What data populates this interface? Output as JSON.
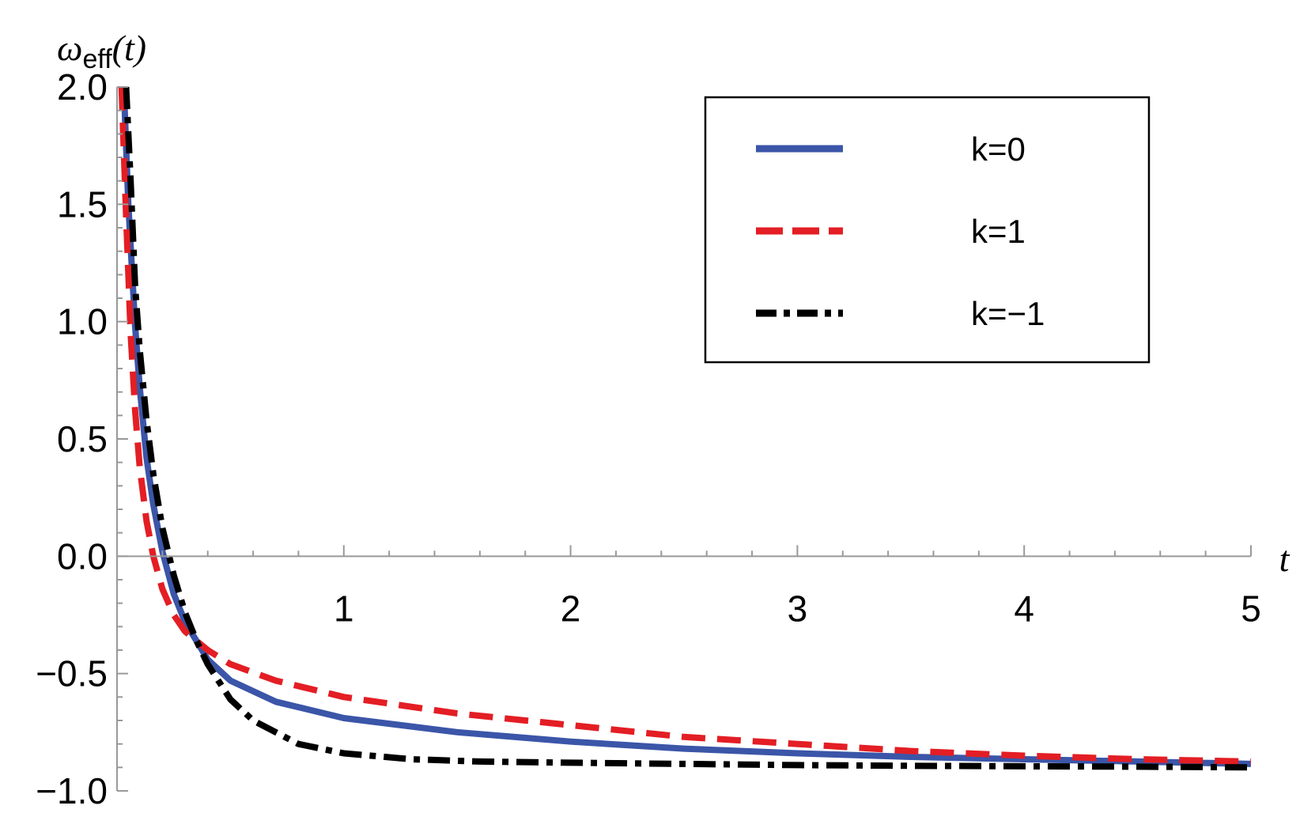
{
  "chart_data": {
    "type": "line",
    "title": "",
    "xlabel": "t",
    "ylabel": {
      "main": "ω",
      "sub": "eff",
      "arg": "(t)"
    },
    "xlim": [
      0,
      5
    ],
    "ylim": [
      -1.0,
      2.0
    ],
    "x_ticks": [
      1,
      2,
      3,
      4,
      5
    ],
    "x_tick_labels": [
      "1",
      "2",
      "3",
      "4",
      "5"
    ],
    "y_ticks": [
      -1.0,
      -0.5,
      0.0,
      0.5,
      1.0,
      1.5,
      2.0
    ],
    "y_tick_labels": [
      "−1.0",
      "−0.5",
      "0.0",
      "0.5",
      "1.0",
      "1.5",
      "2.0"
    ],
    "grid": false,
    "legend": {
      "placement": "top-right"
    },
    "series": [
      {
        "name": "k=0",
        "color": "#3b55a8",
        "style": "solid",
        "x": [
          0.03,
          0.05,
          0.08,
          0.1,
          0.13,
          0.16,
          0.2,
          0.25,
          0.3,
          0.4,
          0.5,
          0.7,
          1.0,
          1.5,
          2.0,
          2.5,
          3.0,
          3.5,
          4.0,
          4.5,
          5.0
        ],
        "y": [
          2.0,
          1.5,
          0.98,
          0.72,
          0.42,
          0.22,
          0.02,
          -0.16,
          -0.28,
          -0.44,
          -0.53,
          -0.62,
          -0.69,
          -0.75,
          -0.79,
          -0.82,
          -0.84,
          -0.855,
          -0.865,
          -0.875,
          -0.885
        ]
      },
      {
        "name": "k=1",
        "color": "#e31e24",
        "style": "dashed",
        "x": [
          0.02,
          0.04,
          0.06,
          0.08,
          0.1,
          0.13,
          0.16,
          0.2,
          0.25,
          0.3,
          0.4,
          0.5,
          0.7,
          1.0,
          1.5,
          2.0,
          2.5,
          3.0,
          3.5,
          4.0,
          4.5,
          5.0
        ],
        "y": [
          2.0,
          1.45,
          0.95,
          0.62,
          0.38,
          0.15,
          0.0,
          -0.14,
          -0.25,
          -0.32,
          -0.4,
          -0.46,
          -0.53,
          -0.6,
          -0.67,
          -0.72,
          -0.77,
          -0.8,
          -0.83,
          -0.85,
          -0.865,
          -0.875
        ]
      },
      {
        "name": "k=−1",
        "color": "#000000",
        "style": "dashdot",
        "x": [
          0.04,
          0.06,
          0.08,
          0.1,
          0.13,
          0.16,
          0.2,
          0.25,
          0.3,
          0.35,
          0.4,
          0.5,
          0.6,
          0.8,
          1.0,
          1.3,
          1.6,
          2.0,
          2.5,
          3.0,
          3.5,
          4.0,
          4.5,
          5.0
        ],
        "y": [
          2.0,
          1.6,
          1.15,
          0.88,
          0.58,
          0.35,
          0.12,
          -0.08,
          -0.24,
          -0.36,
          -0.46,
          -0.61,
          -0.7,
          -0.8,
          -0.84,
          -0.865,
          -0.875,
          -0.88,
          -0.885,
          -0.89,
          -0.893,
          -0.895,
          -0.897,
          -0.9
        ]
      }
    ]
  }
}
